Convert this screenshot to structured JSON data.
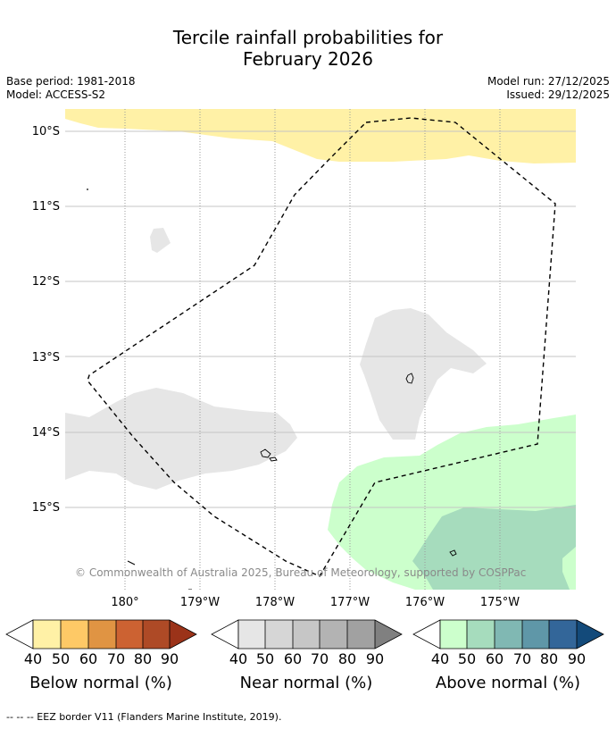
{
  "title": {
    "line1": "Tercile rainfall probabilities for",
    "line2": "February 2026"
  },
  "meta": {
    "base_period": "Base period: 1981-2018",
    "model": "Model: ACCESS-S2",
    "model_run": "Model run: 27/12/2025",
    "issued": "Issued: 29/12/2025"
  },
  "map": {
    "lat_labels": [
      "10°S",
      "11°S",
      "12°S",
      "13°S",
      "14°S",
      "15°S"
    ],
    "lon_labels": [
      "180°",
      "179°W",
      "178°W",
      "177°W",
      "176°W",
      "175°W"
    ],
    "copyright": "© Commonwealth of Australia 2025, Bureau of Meteorology, supported by COSPPac",
    "layers": [
      "Below normal 40-50%",
      "Near normal 40-50%",
      "Above normal 40-50%",
      "Above normal 50-60%",
      "EEZ border"
    ]
  },
  "colorbars": [
    {
      "title": "Below normal (%)",
      "ticks": [
        "40",
        "50",
        "60",
        "70",
        "80",
        "90"
      ],
      "colors": [
        "#fff1a6",
        "#fec966",
        "#e09443",
        "#cc6232",
        "#ae4a26",
        "#9b3319"
      ]
    },
    {
      "title": "Near normal (%)",
      "ticks": [
        "40",
        "50",
        "60",
        "70",
        "80",
        "90"
      ],
      "colors": [
        "#e6e6e6",
        "#d6d6d6",
        "#c6c6c6",
        "#b3b3b3",
        "#a1a1a1",
        "#808080"
      ]
    },
    {
      "title": "Above normal (%)",
      "ticks": [
        "40",
        "50",
        "60",
        "70",
        "80",
        "90"
      ],
      "colors": [
        "#ccffcc",
        "#a6dcbd",
        "#80b8b3",
        "#5f97a8",
        "#336699",
        "#134a7a"
      ]
    }
  ],
  "footer": "--  --  -- EEZ border V11 (Flanders Marine Institute, 2019)."
}
